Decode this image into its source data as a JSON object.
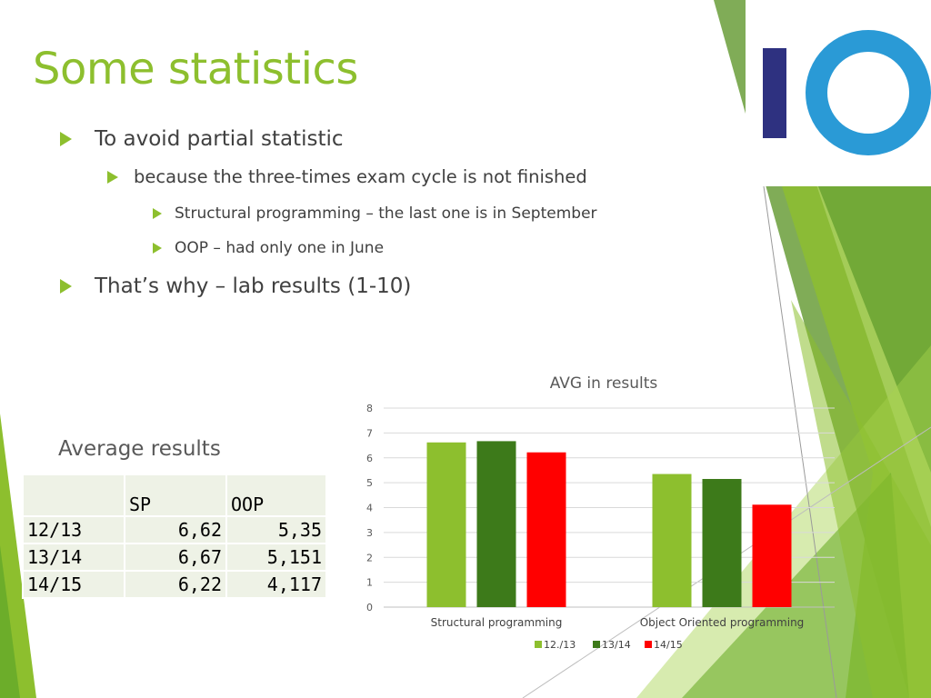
{
  "slide": {
    "title": "Some statistics",
    "bullets": [
      {
        "level": 1,
        "text": "To avoid partial statistic"
      },
      {
        "level": 2,
        "text": "because the three-times exam cycle is not finished"
      },
      {
        "level": 3,
        "text": "Structural programming – the last one is in September"
      },
      {
        "level": 3,
        "text": "OOP – had only one in June"
      },
      {
        "level": 1,
        "text": "That’s why – lab results (1-10)"
      }
    ],
    "logo_letters": "IO"
  },
  "table": {
    "heading": "Average results",
    "columns": [
      "",
      "SP",
      "OOP"
    ],
    "rows": [
      [
        "12/13",
        "6,62",
        "5,35"
      ],
      [
        "13/14",
        "6,67",
        "5,151"
      ],
      [
        "14/15",
        "6,22",
        "4,117"
      ]
    ]
  },
  "colors": {
    "accent": "#8dbf2e",
    "dark_green": "#3d7a1a",
    "red": "#ff0000",
    "logo_navy": "#2e3180",
    "logo_blue": "#2a9ad6"
  },
  "chart_data": {
    "type": "bar",
    "title": "AVG in results",
    "xlabel": "",
    "ylabel": "",
    "categories": [
      "Structural programming",
      "Object Oriented programming"
    ],
    "series": [
      {
        "name": "12./13",
        "values": [
          6.62,
          5.35
        ],
        "color": "#8dbf2e"
      },
      {
        "name": "13/14",
        "values": [
          6.67,
          5.151
        ],
        "color": "#3d7a1a"
      },
      {
        "name": "14/15",
        "values": [
          6.22,
          4.117
        ],
        "color": "#ff0000"
      }
    ],
    "ylim": [
      0,
      8
    ],
    "yticks": [
      0,
      1,
      2,
      3,
      4,
      5,
      6,
      7,
      8
    ],
    "grid": true,
    "legend": "bottom"
  }
}
